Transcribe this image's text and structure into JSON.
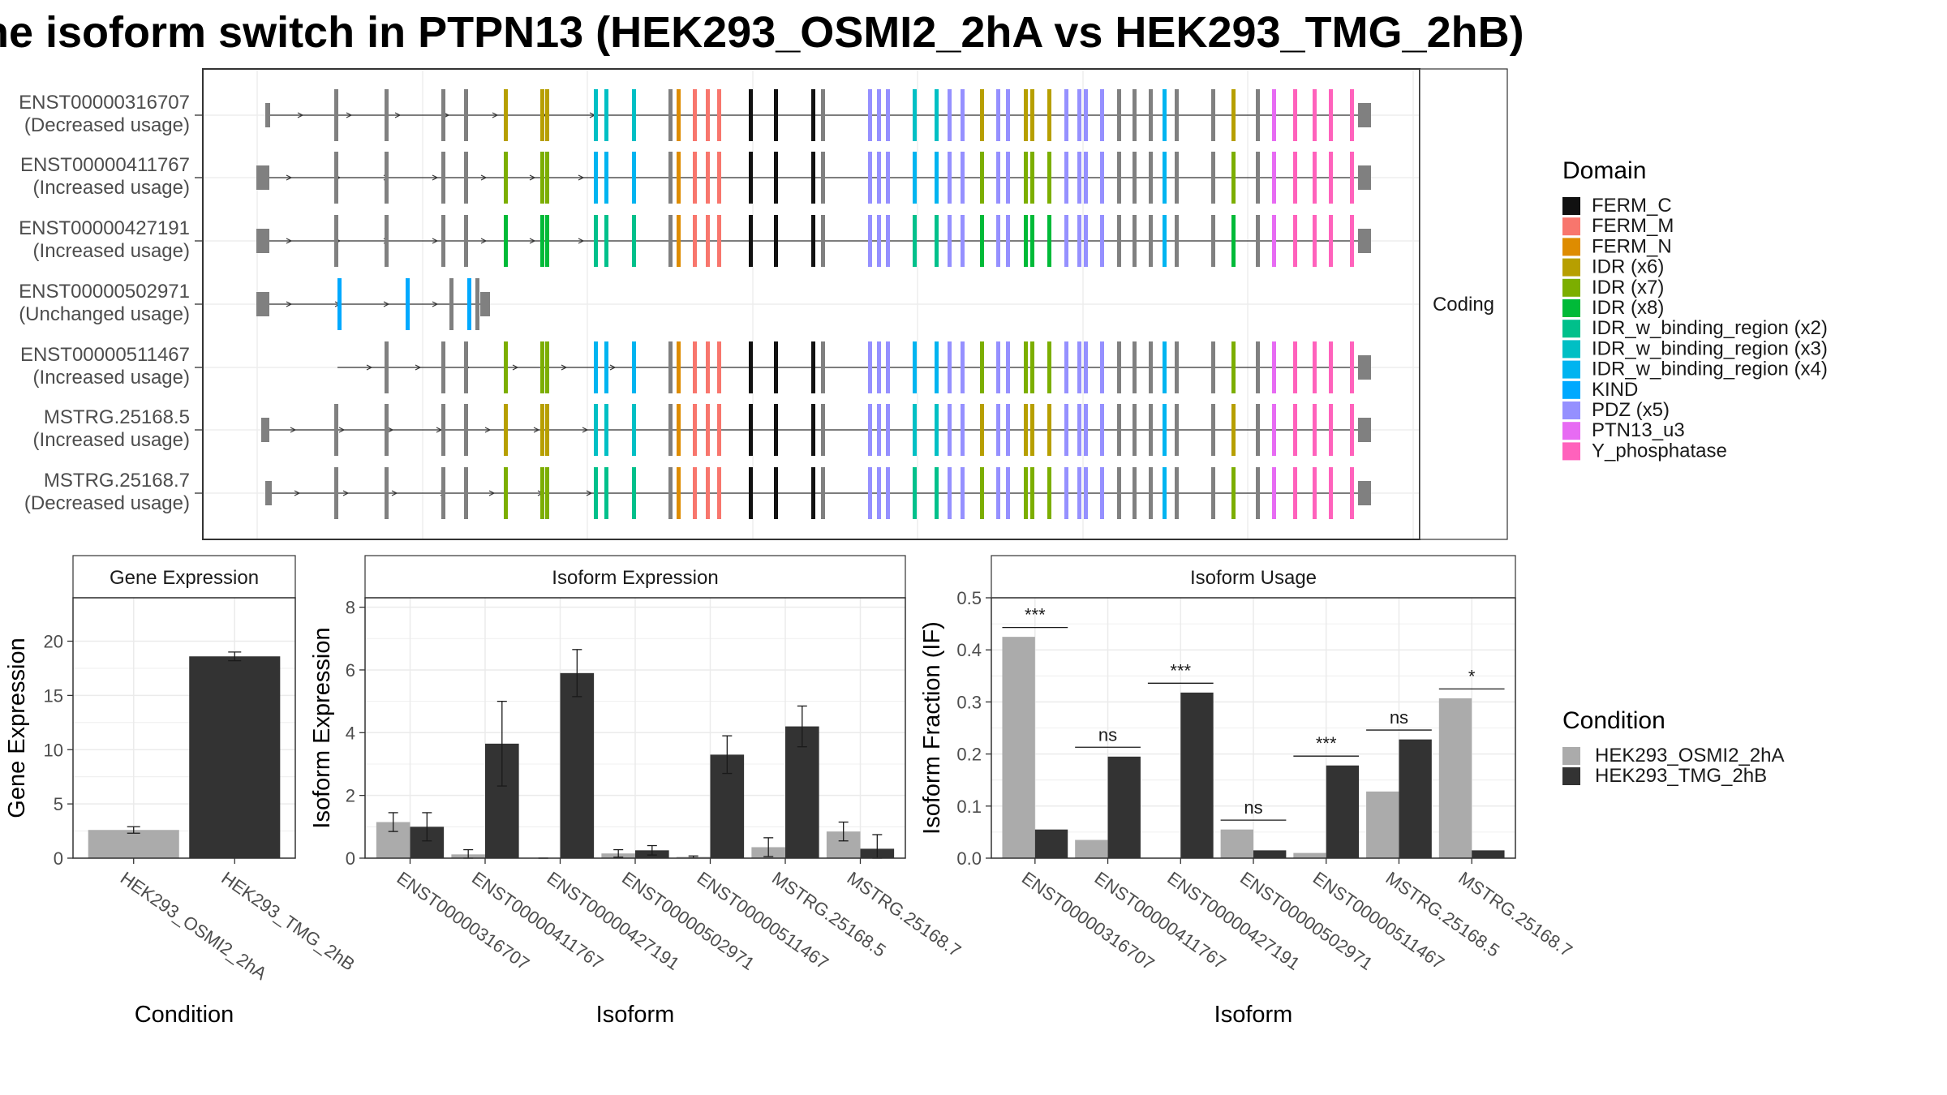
{
  "title": "he isoform switch in PTPN13 (HEK293_OSMI2_2hA vs HEK293_TMG_2hB)",
  "colors": {
    "condition_a": "#ABABAB",
    "condition_b": "#333333",
    "structure": "#808080",
    "panel_border": "#333333",
    "grid": "#EBEBEB",
    "strip_bg": "#FFFFFF"
  },
  "domain_colors": {
    "FERM_C": "#111111",
    "FERM_M": "#F8766D",
    "FERM_N": "#DE8C00",
    "IDR (x6)": "#B79F00",
    "IDR (x7)": "#7CAE00",
    "IDR (x8)": "#00BA38",
    "IDR_w_binding_region (x2)": "#00C08B",
    "IDR_w_binding_region (x3)": "#00BFC4",
    "IDR_w_binding_region (x4)": "#00B4F0",
    "KIND": "#00A9FF",
    "PDZ (x5)": "#9590FF",
    "PTN13_u3": "#E76BF3",
    "Y_phosphatase": "#FF62BC"
  },
  "structure_panel": {
    "strip_label": "Coding",
    "transcripts": [
      {
        "id": "ENST00000316707",
        "usage": "(Decreased usage)"
      },
      {
        "id": "ENST00000411767",
        "usage": "(Increased usage)"
      },
      {
        "id": "ENST00000427191",
        "usage": "(Increased usage)"
      },
      {
        "id": "ENST00000502971",
        "usage": "(Unchanged usage)"
      },
      {
        "id": "ENST00000511467",
        "usage": "(Increased usage)"
      },
      {
        "id": "MSTRG.25168.5",
        "usage": "(Increased usage)"
      },
      {
        "id": "MSTRG.25168.7",
        "usage": "(Decreased usage)"
      }
    ]
  },
  "legend_domain": {
    "title": "Domain",
    "items": [
      "FERM_C",
      "FERM_M",
      "FERM_N",
      "IDR (x6)",
      "IDR (x7)",
      "IDR (x8)",
      "IDR_w_binding_region (x2)",
      "IDR_w_binding_region (x3)",
      "IDR_w_binding_region (x4)",
      "KIND",
      "PDZ (x5)",
      "PTN13_u3",
      "Y_phosphatase"
    ]
  },
  "legend_condition": {
    "title": "Condition",
    "items": [
      "HEK293_OSMI2_2hA",
      "HEK293_TMG_2hB"
    ]
  },
  "chart_data": [
    {
      "type": "bar",
      "title": "Gene Expression",
      "xlabel": "Condition",
      "ylabel": "Gene Expression",
      "categories": [
        "HEK293_OSMI2_2hA",
        "HEK293_TMG_2hB"
      ],
      "values": [
        2.6,
        18.6
      ],
      "errors": [
        0.3,
        0.4
      ],
      "ylim": [
        0,
        24
      ],
      "yticks": [
        0,
        5,
        10,
        15,
        20
      ]
    },
    {
      "type": "bar",
      "title": "Isoform Expression",
      "xlabel": "Isoform",
      "ylabel": "Isoform Expression",
      "categories": [
        "ENST00000316707",
        "ENST00000411767",
        "ENST00000427191",
        "ENST00000502971",
        "ENST00000511467",
        "MSTRG.25168.5",
        "MSTRG.25168.7"
      ],
      "series": [
        {
          "name": "HEK293_OSMI2_2hA",
          "values": [
            1.15,
            0.12,
            0.0,
            0.15,
            0.04,
            0.35,
            0.85
          ],
          "errors": [
            0.3,
            0.15,
            0.0,
            0.12,
            0.03,
            0.3,
            0.3
          ]
        },
        {
          "name": "HEK293_TMG_2hB",
          "values": [
            1.0,
            3.65,
            5.9,
            0.25,
            3.3,
            4.2,
            0.3
          ],
          "errors": [
            0.45,
            1.35,
            0.75,
            0.15,
            0.6,
            0.65,
            0.45
          ]
        }
      ],
      "ylim": [
        0,
        8.3
      ],
      "yticks": [
        0,
        2,
        4,
        6,
        8
      ]
    },
    {
      "type": "bar",
      "title": "Isoform Usage",
      "xlabel": "Isoform",
      "ylabel": "Isoform Fraction (IF)",
      "categories": [
        "ENST00000316707",
        "ENST00000411767",
        "ENST00000427191",
        "ENST00000502971",
        "ENST00000511467",
        "MSTRG.25168.5",
        "MSTRG.25168.7"
      ],
      "series": [
        {
          "name": "HEK293_OSMI2_2hA",
          "values": [
            0.425,
            0.035,
            0.0,
            0.055,
            0.01,
            0.128,
            0.307
          ]
        },
        {
          "name": "HEK293_TMG_2hB",
          "values": [
            0.055,
            0.195,
            0.318,
            0.015,
            0.178,
            0.228,
            0.015
          ]
        }
      ],
      "significance": [
        "***",
        "ns",
        "***",
        "ns",
        "***",
        "ns",
        "*"
      ],
      "ylim": [
        0,
        0.5
      ],
      "yticks": [
        0.0,
        0.1,
        0.2,
        0.3,
        0.4,
        0.5
      ]
    }
  ]
}
